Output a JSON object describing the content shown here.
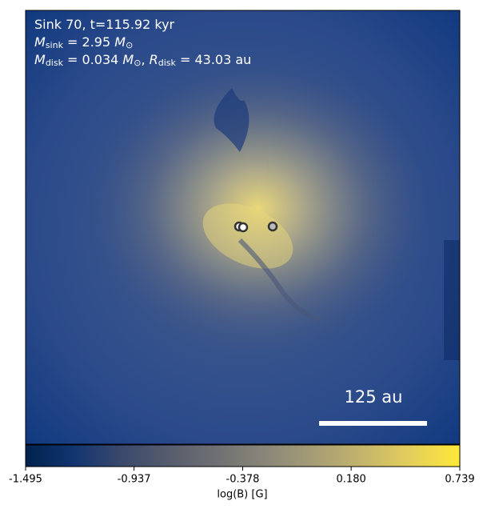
{
  "chart_data": {
    "type": "heatmap",
    "title_lines": [
      [
        "Sink 70, t=115.92 kyr"
      ],
      [
        "M",
        "sink",
        " = 2.95 ",
        "M",
        "⊙"
      ],
      [
        "M",
        "disk",
        " = 0.034 ",
        "M",
        "⊙",
        ", ",
        "R",
        "disk",
        " = 43.03 au"
      ]
    ],
    "scale_bar_label": "125 au",
    "colorbar": {
      "label": "log(B) [G]",
      "lim": [
        -1.495,
        0.739
      ],
      "ticks": [
        -1.495,
        -0.937,
        -0.378,
        {
          "value": 0.18,
          "label": "0.180"
        },
        0.739
      ],
      "colormap": [
        "#00224e",
        "#123570",
        "#3b496c",
        "#575d6d",
        "#707173",
        "#8a8779",
        "#a69d75",
        "#c4b56c",
        "#e4cf5b",
        "#fee838"
      ]
    }
  }
}
